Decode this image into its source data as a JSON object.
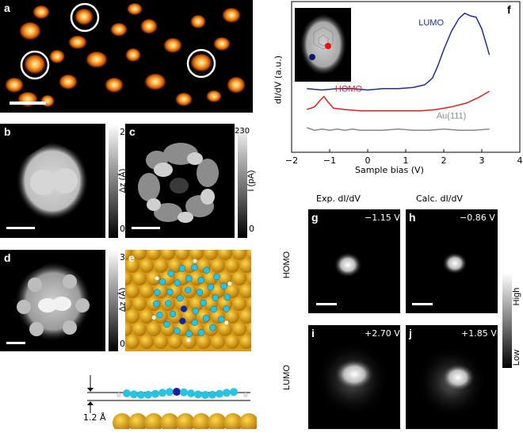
{
  "panels": {
    "a": {
      "label": "a"
    },
    "b": {
      "label": "b",
      "cb_top": "2",
      "cb_bottom": "0",
      "cb_unit": "Δz (Å)"
    },
    "c": {
      "label": "c",
      "cb_top": "230",
      "cb_bottom": "0",
      "cb_unit": "I (pA)"
    },
    "d": {
      "label": "d",
      "cb_top": "3",
      "cb_bottom": "0",
      "cb_unit": "Δz (Å)"
    },
    "e": {
      "label": "e"
    },
    "side": {
      "height_label": "1.2 Å"
    },
    "f": {
      "label": "f"
    },
    "g": {
      "label": "g",
      "bias": "−1.15 V"
    },
    "h": {
      "label": "h",
      "bias": "−0.86 V"
    },
    "i": {
      "label": "i",
      "bias": "+2.70 V"
    },
    "j": {
      "label": "j",
      "bias": "+1.85 V"
    }
  },
  "maps": {
    "col_exp": "Exp. dI/dV",
    "col_calc": "Calc. dI/dV",
    "row_homo": "HOMO",
    "row_lumo": "LUMO",
    "cb_high": "High",
    "cb_low": "Low"
  },
  "chart_data": {
    "type": "line",
    "xlabel": "Sample bias (V)",
    "ylabel": "dI/dV (a.u.)",
    "xlim": [
      -2,
      4
    ],
    "xticks": [
      "−2",
      "−1",
      "0",
      "1",
      "2",
      "3",
      "4"
    ],
    "series": [
      {
        "name": "LUMO",
        "color": "#1f2e9c",
        "x": [
          -1.6,
          -1.2,
          -0.8,
          -0.4,
          0.0,
          0.4,
          0.8,
          1.2,
          1.5,
          1.7,
          1.85,
          2.0,
          2.2,
          2.4,
          2.55,
          2.7,
          2.85,
          3.0,
          3.2
        ],
        "y": [
          0.44,
          0.43,
          0.44,
          0.44,
          0.43,
          0.44,
          0.44,
          0.45,
          0.47,
          0.52,
          0.62,
          0.74,
          0.88,
          0.98,
          1.02,
          1.0,
          0.99,
          0.9,
          0.7
        ]
      },
      {
        "name": "HOMO",
        "color": "#e02020",
        "x": [
          -1.6,
          -1.4,
          -1.25,
          -1.15,
          -1.05,
          -0.9,
          -0.6,
          -0.2,
          0.2,
          0.6,
          1.0,
          1.4,
          1.8,
          2.2,
          2.6,
          2.9,
          3.2
        ],
        "y": [
          0.28,
          0.3,
          0.35,
          0.38,
          0.34,
          0.29,
          0.28,
          0.27,
          0.27,
          0.27,
          0.27,
          0.27,
          0.28,
          0.3,
          0.33,
          0.37,
          0.42
        ]
      },
      {
        "name": "Au(111)",
        "color": "#8a8a8a",
        "x": [
          -1.6,
          -1.4,
          -1.2,
          -1.0,
          -0.8,
          -0.6,
          -0.4,
          -0.2,
          0.0,
          0.4,
          0.8,
          1.2,
          1.6,
          2.0,
          2.4,
          2.8,
          3.2
        ],
        "y": [
          0.14,
          0.12,
          0.13,
          0.12,
          0.13,
          0.12,
          0.13,
          0.12,
          0.12,
          0.12,
          0.13,
          0.12,
          0.12,
          0.13,
          0.12,
          0.12,
          0.13
        ]
      }
    ]
  }
}
